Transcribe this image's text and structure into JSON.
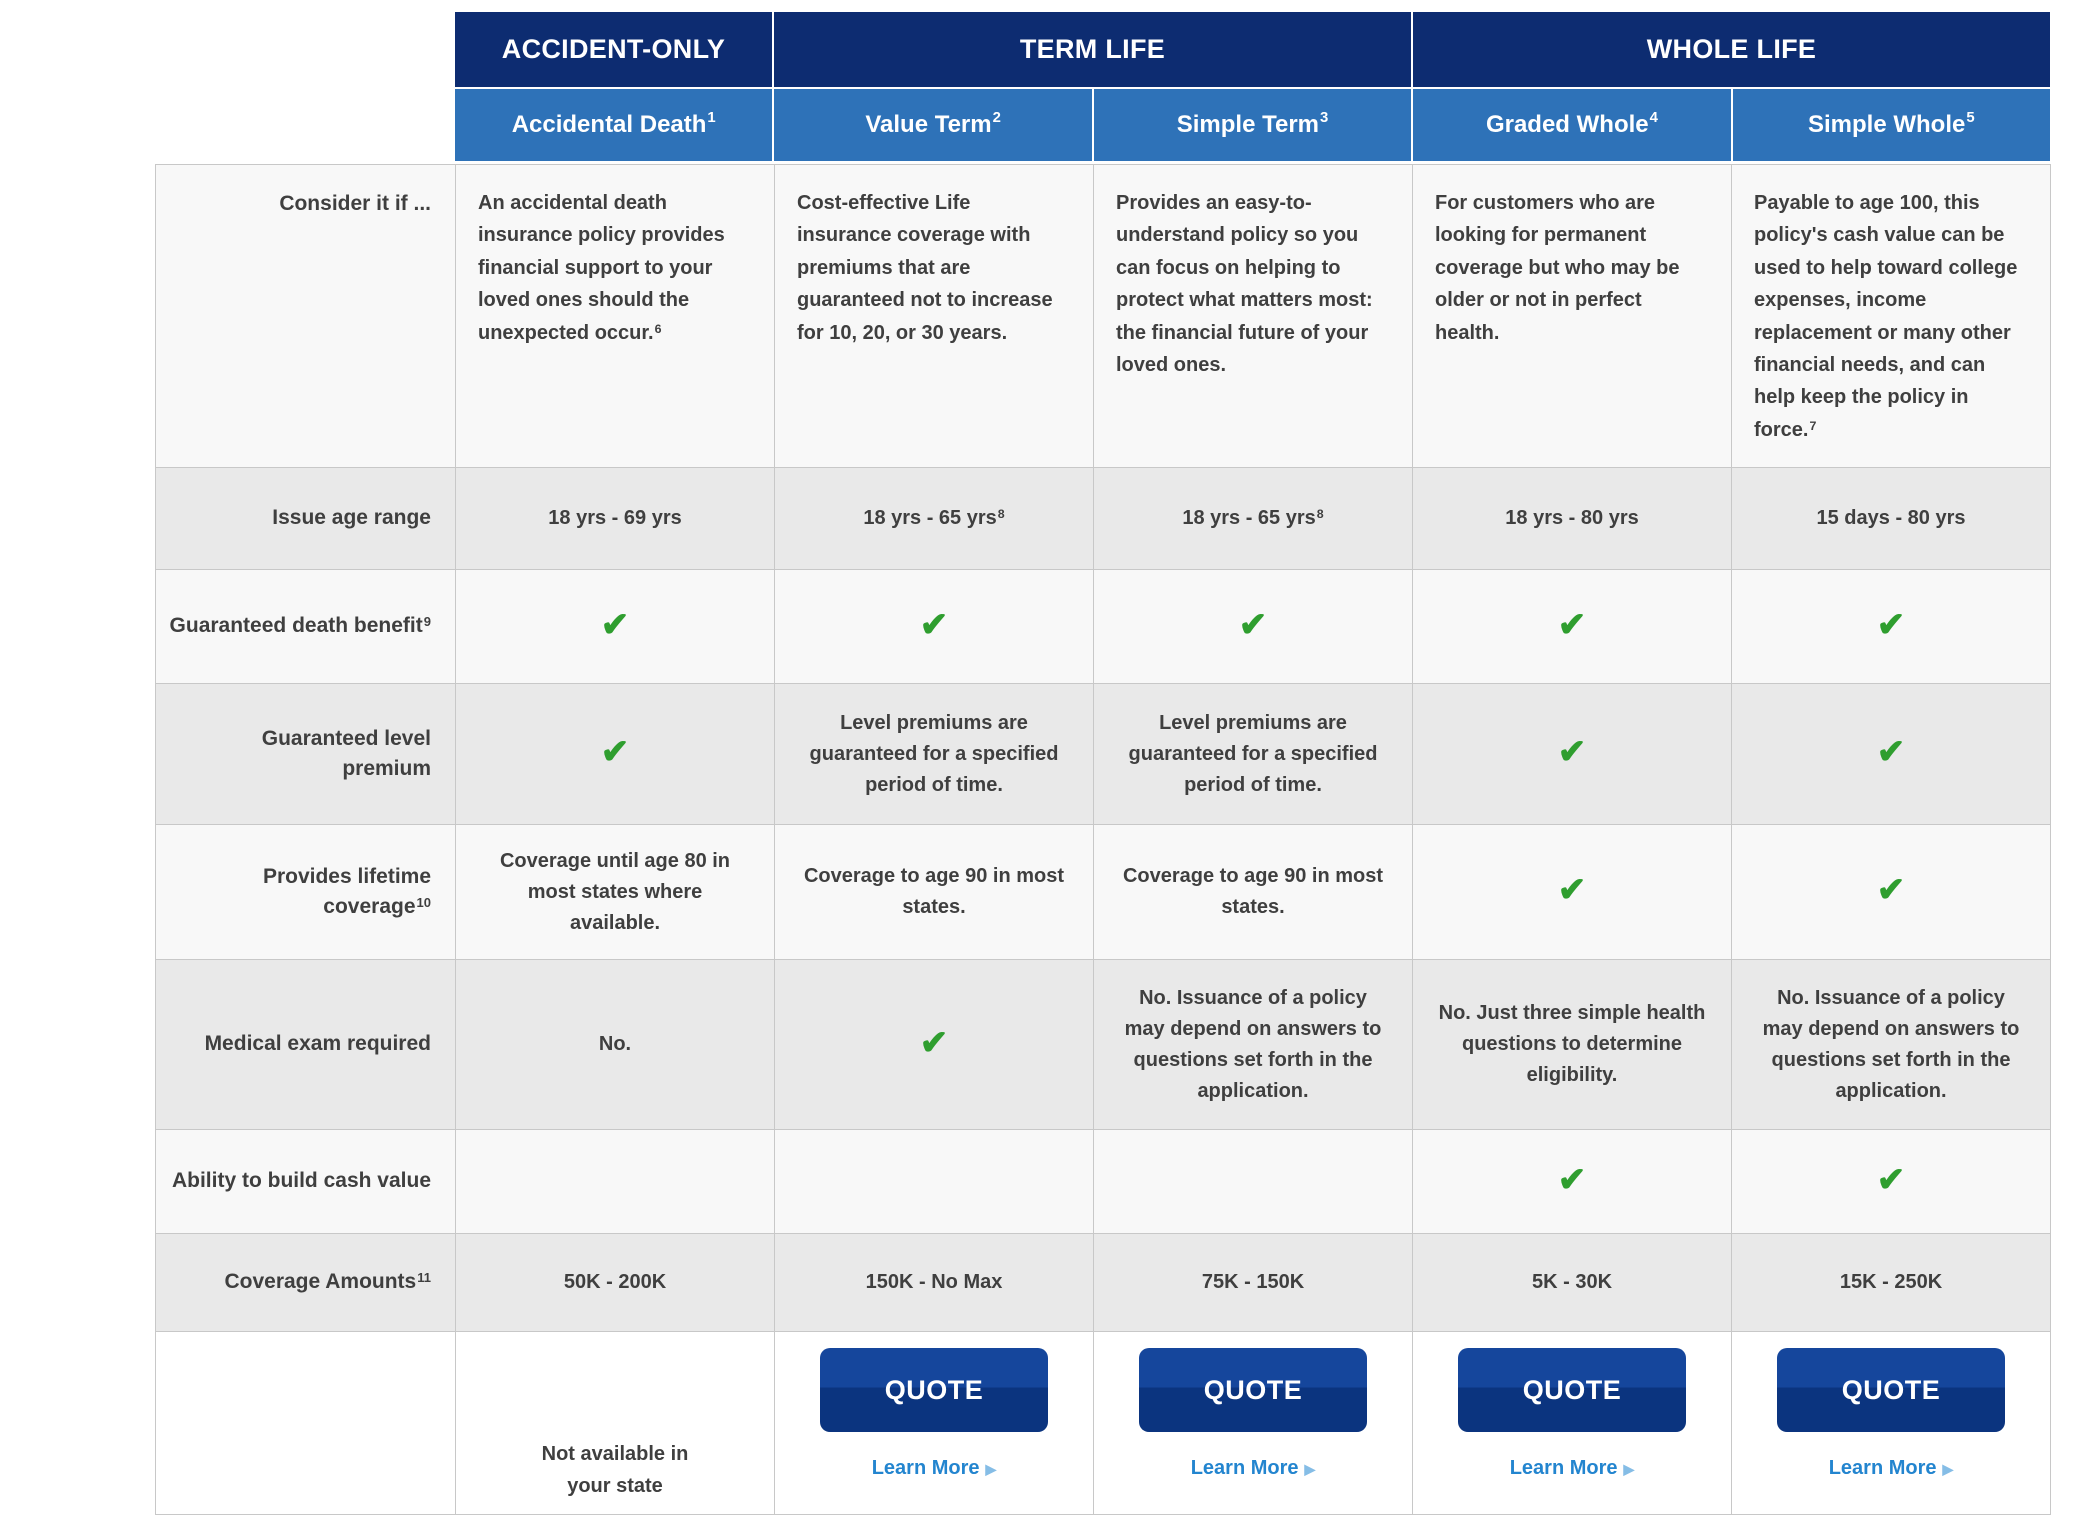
{
  "colors": {
    "navy": "#0d2c71",
    "blue": "#2e72b8",
    "text": "#3f3f3f",
    "row-light": "#f8f8f8",
    "row-gray": "#e9e9e9",
    "border": "#c8c8c8",
    "check-green": "#2f9e2f",
    "btn-top": "#15469c",
    "btn-bottom": "#0b347f",
    "link-blue": "#2385cf",
    "arrow-blue": "#85bde6"
  },
  "table": {
    "check_glyph": "✔",
    "groups": [
      {
        "label": "ACCIDENT-ONLY"
      },
      {
        "label": "TERM LIFE"
      },
      {
        "label": "WHOLE LIFE"
      }
    ],
    "products": [
      {
        "name": "Accidental Death",
        "sup": "1"
      },
      {
        "name": "Value Term",
        "sup": "2"
      },
      {
        "name": "Simple Term",
        "sup": "3"
      },
      {
        "name": "Graded Whole",
        "sup": "4"
      },
      {
        "name": "Simple Whole",
        "sup": "5"
      }
    ],
    "rows": [
      {
        "label": "Consider it if ...",
        "top_left": true,
        "cells": [
          {
            "type": "text",
            "text": "An accidental death insurance policy provides financial support to your loved ones should the unexpected occur.",
            "sup": "6"
          },
          {
            "type": "text",
            "text": "Cost-effective Life insurance coverage with premiums that are guaranteed not to increase for 10, 20, or 30 years."
          },
          {
            "type": "text",
            "text": "Provides an easy-to-understand policy so you can focus on helping to protect what matters most: the financial future of your loved ones."
          },
          {
            "type": "text",
            "text": "For customers who are looking for permanent coverage but who may be older or not in perfect health."
          },
          {
            "type": "text",
            "text": "Payable to age 100, this policy's cash value can be used to help toward college expenses, income replacement or many other financial needs, and can help keep the policy in force.",
            "sup": "7"
          }
        ]
      },
      {
        "label": "Issue age range",
        "cells": [
          {
            "type": "text",
            "text": "18 yrs - 69 yrs"
          },
          {
            "type": "text",
            "text": "18 yrs - 65 yrs",
            "sup": "8"
          },
          {
            "type": "text",
            "text": "18 yrs - 65 yrs",
            "sup": "8"
          },
          {
            "type": "text",
            "text": "18 yrs - 80 yrs"
          },
          {
            "type": "text",
            "text": "15 days - 80 yrs"
          }
        ]
      },
      {
        "label": "Guaranteed death benefit",
        "label_sup": "9",
        "cells": [
          {
            "type": "check"
          },
          {
            "type": "check"
          },
          {
            "type": "check"
          },
          {
            "type": "check"
          },
          {
            "type": "check"
          }
        ]
      },
      {
        "label": "Guaranteed level premium",
        "cells": [
          {
            "type": "check"
          },
          {
            "type": "text",
            "text": "Level premiums are guaranteed for a specified period of time."
          },
          {
            "type": "text",
            "text": "Level premiums are guaranteed for a specified period of time."
          },
          {
            "type": "check"
          },
          {
            "type": "check"
          }
        ]
      },
      {
        "label": "Provides lifetime coverage",
        "label_sup": "10",
        "cells": [
          {
            "type": "text",
            "text": "Coverage until age 80 in most states where available."
          },
          {
            "type": "text",
            "text": "Coverage to age 90 in most states."
          },
          {
            "type": "text",
            "text": "Coverage to age 90 in most states."
          },
          {
            "type": "check"
          },
          {
            "type": "check"
          }
        ]
      },
      {
        "label": "Medical exam required",
        "cells": [
          {
            "type": "text",
            "text": "No."
          },
          {
            "type": "check"
          },
          {
            "type": "text",
            "text": "No. Issuance of a policy may depend on answers to questions set forth in the application."
          },
          {
            "type": "text",
            "text": "No. Just three simple health questions to determine eligibility."
          },
          {
            "type": "text",
            "text": "No. Issuance of a policy may depend on answers to questions set forth in the application."
          }
        ]
      },
      {
        "label": "Ability to build cash value",
        "cells": [
          {
            "type": "empty"
          },
          {
            "type": "empty"
          },
          {
            "type": "empty"
          },
          {
            "type": "check"
          },
          {
            "type": "check"
          }
        ]
      },
      {
        "label": "Coverage Amounts",
        "label_sup": "11",
        "cells": [
          {
            "type": "text",
            "text": "50K - 200K"
          },
          {
            "type": "text",
            "text": "150K - No Max"
          },
          {
            "type": "text",
            "text": "75K - 150K"
          },
          {
            "type": "text",
            "text": "5K - 30K"
          },
          {
            "type": "text",
            "text": "15K - 250K"
          }
        ]
      }
    ],
    "footer": {
      "not_available_line1": "Not available in",
      "not_available_line2": "your state",
      "quote_label": "QUOTE",
      "learn_more_label": "Learn More",
      "arrow_glyph": "▶"
    }
  }
}
